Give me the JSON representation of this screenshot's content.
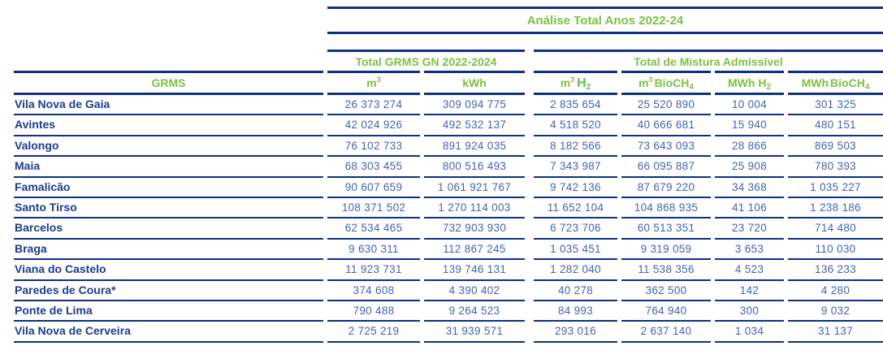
{
  "colors": {
    "navy_line": "#0d3185",
    "label_blue": "#1c3c92",
    "value_blue": "#4066ae",
    "accent_green": "#7cc142"
  },
  "table": {
    "title": "Análise Total Anos 2022-24",
    "groups": {
      "left": "Total GRMS GN 2022-2024",
      "right": "Total de Mistura Admissível"
    },
    "headers": {
      "grms": "GRMS",
      "m3": {
        "base": "m",
        "sup": "3"
      },
      "kwh": "kWh",
      "m3h2": {
        "base": "m",
        "sup": "3",
        "main": "H",
        "sub": "2"
      },
      "m3bio": {
        "base": "m",
        "sup": "3",
        "main": "BioCH",
        "sub": "4"
      },
      "mwhh2": {
        "base": "MWh",
        "main": "H",
        "sub": "2"
      },
      "mwhbio": {
        "base": "MWh",
        "main": "BioCH",
        "sub": "4"
      }
    },
    "rows": [
      {
        "name": "Vila Nova de Gaia",
        "values": [
          "26 373 274",
          "309 094 775",
          "2 835 654",
          "25 520 890",
          "10 004",
          "301 325"
        ]
      },
      {
        "name": "Avintes",
        "values": [
          "42 024 926",
          "492 532 137",
          "4 518 520",
          "40 666 681",
          "15 940",
          "480 151"
        ]
      },
      {
        "name": "Valongo",
        "values": [
          "76 102 733",
          "891 924 035",
          "8 182 566",
          "73 643 093",
          "28 866",
          "869 503"
        ]
      },
      {
        "name": "Maia",
        "values": [
          "68 303 455",
          "800 516 493",
          "7 343 987",
          "66 095 887",
          "25 908",
          "780 393"
        ]
      },
      {
        "name": "Famalicão",
        "values": [
          "90 607 659",
          "1 061 921 767",
          "9 742 136",
          "87 679 220",
          "34 368",
          "1 035 227"
        ]
      },
      {
        "name": "Santo Tirso",
        "values": [
          "108 371 502",
          "1 270 114 003",
          "11 652 104",
          "104 868 935",
          "41 106",
          "1 238 186"
        ]
      },
      {
        "name": "Barcelos",
        "values": [
          "62 534 465",
          "732 903 930",
          "6 723 706",
          "60 513 351",
          "23 720",
          "714 480"
        ]
      },
      {
        "name": "Braga",
        "values": [
          "9 630 311",
          "112 867 245",
          "1 035 451",
          "9 319 059",
          "3 653",
          "110 030"
        ]
      },
      {
        "name": "Viana do Castelo",
        "values": [
          "11 923 731",
          "139 746 131",
          "1 282 040",
          "11 538 356",
          "4 523",
          "136 233"
        ]
      },
      {
        "name": "Paredes de Coura*",
        "values": [
          "374 608",
          "4 390 402",
          "40 278",
          "362 500",
          "142",
          "4 280"
        ]
      },
      {
        "name": "Ponte de Lima",
        "values": [
          "790 488",
          "9 264 523",
          "84 993",
          "764 940",
          "300",
          "9 032"
        ]
      },
      {
        "name": "Vila Nova de Cerveira",
        "values": [
          "2 725 219",
          "31 939 571",
          "293 016",
          "2 637 140",
          "1 034",
          "31 137"
        ]
      }
    ]
  },
  "chart_data": {
    "type": "table",
    "title": "Análise Total Anos 2022-24",
    "column_groups": [
      {
        "label": "Total GRMS GN 2022-2024",
        "columns": [
          "m³",
          "kWh"
        ]
      },
      {
        "label": "Total de Mistura Admissível",
        "columns": [
          "m³ H₂",
          "m³ BioCH₄",
          "MWh H₂",
          "MWh BioCH₄"
        ]
      }
    ],
    "columns": [
      "GRMS",
      "m³",
      "kWh",
      "m³ H₂",
      "m³ BioCH₄",
      "MWh H₂",
      "MWh BioCH₄"
    ],
    "rows": [
      [
        "Vila Nova de Gaia",
        26373274,
        309094775,
        2835654,
        25520890,
        10004,
        301325
      ],
      [
        "Avintes",
        42024926,
        492532137,
        4518520,
        40666681,
        15940,
        480151
      ],
      [
        "Valongo",
        76102733,
        891924035,
        8182566,
        73643093,
        28866,
        869503
      ],
      [
        "Maia",
        68303455,
        800516493,
        7343987,
        66095887,
        25908,
        780393
      ],
      [
        "Famalicão",
        90607659,
        1061921767,
        9742136,
        87679220,
        34368,
        1035227
      ],
      [
        "Santo Tirso",
        108371502,
        1270114003,
        11652104,
        104868935,
        41106,
        1238186
      ],
      [
        "Barcelos",
        62534465,
        732903930,
        6723706,
        60513351,
        23720,
        714480
      ],
      [
        "Braga",
        9630311,
        112867245,
        1035451,
        9319059,
        3653,
        110030
      ],
      [
        "Viana do Castelo",
        11923731,
        139746131,
        1282040,
        11538356,
        4523,
        136233
      ],
      [
        "Paredes de Coura*",
        374608,
        4390402,
        40278,
        362500,
        142,
        4280
      ],
      [
        "Ponte de Lima",
        790488,
        9264523,
        84993,
        764940,
        300,
        9032
      ],
      [
        "Vila Nova de Cerveira",
        2725219,
        31939571,
        293016,
        2637140,
        1034,
        31137
      ]
    ]
  }
}
